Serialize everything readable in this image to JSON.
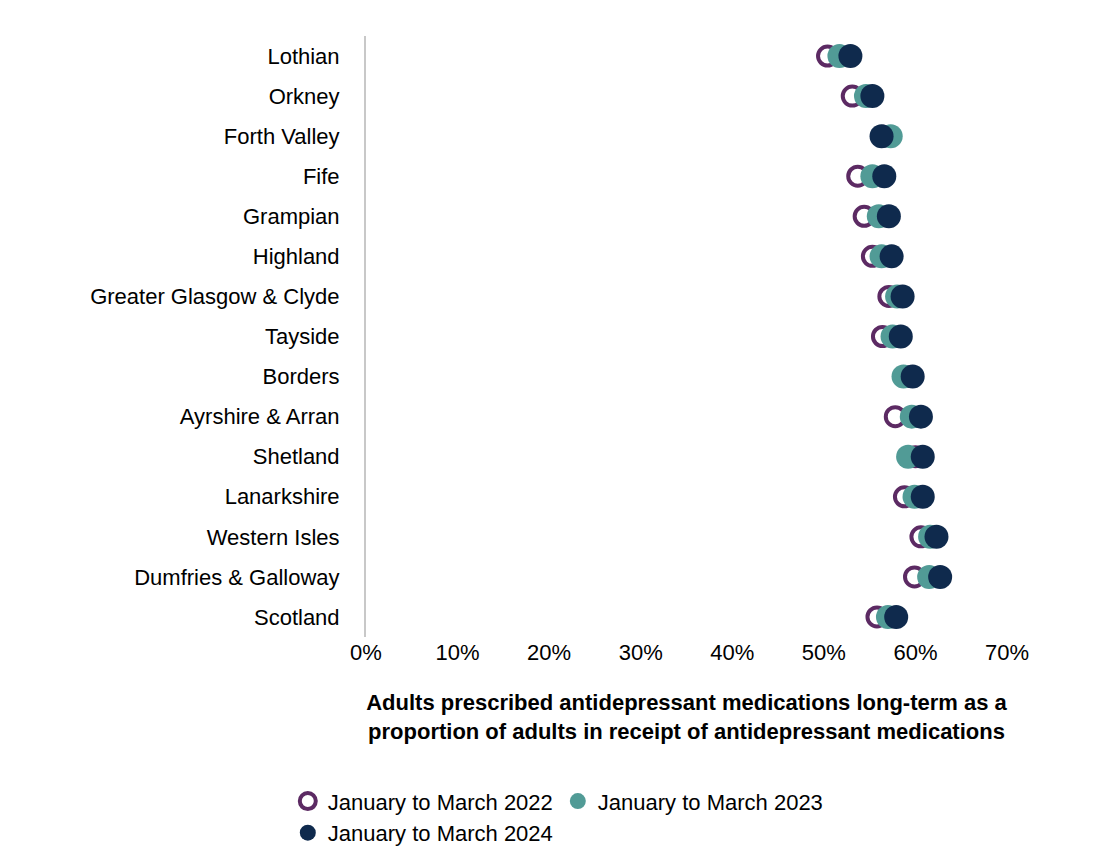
{
  "chart_data": {
    "type": "dot",
    "orientation": "horizontal",
    "xlabel": "Adults prescribed antidepressant medications long-term as a\nproportion of adults in receipt of antidepressant medications",
    "categories": [
      "Lothian",
      "Orkney",
      "Forth Valley",
      "Fife",
      "Grampian",
      "Highland",
      "Greater Glasgow & Clyde",
      "Tayside",
      "Borders",
      "Ayrshire & Arran",
      "Shetland",
      "Lanarkshire",
      "Western Isles",
      "Dumfries & Galloway",
      "Scotland"
    ],
    "series": [
      {
        "name": "January to March 2022",
        "color": "#5c2a63",
        "marker": "open",
        "values": [
          50.4,
          53.1,
          56.5,
          53.7,
          54.4,
          55.3,
          57.1,
          56.4,
          59.0,
          57.8,
          60.0,
          58.8,
          60.6,
          59.9,
          55.8
        ]
      },
      {
        "name": "January to March 2023",
        "color": "#519b96",
        "marker": "filled",
        "values": [
          51.7,
          54.6,
          57.3,
          55.3,
          56.0,
          56.3,
          58.0,
          57.5,
          58.7,
          59.6,
          59.2,
          59.9,
          61.6,
          61.5,
          57.0
        ]
      },
      {
        "name": "January to March 2024",
        "color": "#0f2a4d",
        "marker": "filled",
        "values": [
          52.9,
          55.3,
          56.3,
          56.6,
          57.1,
          57.4,
          58.6,
          58.4,
          59.7,
          60.6,
          60.8,
          60.8,
          62.3,
          62.7,
          57.9
        ]
      }
    ],
    "xlim": [
      0,
      70
    ],
    "xticks": [
      {
        "value": 0,
        "label": "0%"
      },
      {
        "value": 10,
        "label": "10%"
      },
      {
        "value": 20,
        "label": "20%"
      },
      {
        "value": 30,
        "label": "30%"
      },
      {
        "value": 40,
        "label": "40%"
      },
      {
        "value": 50,
        "label": "50%"
      },
      {
        "value": 60,
        "label": "60%"
      },
      {
        "value": 70,
        "label": "70%"
      }
    ],
    "grid": false,
    "legend": "bottom"
  }
}
